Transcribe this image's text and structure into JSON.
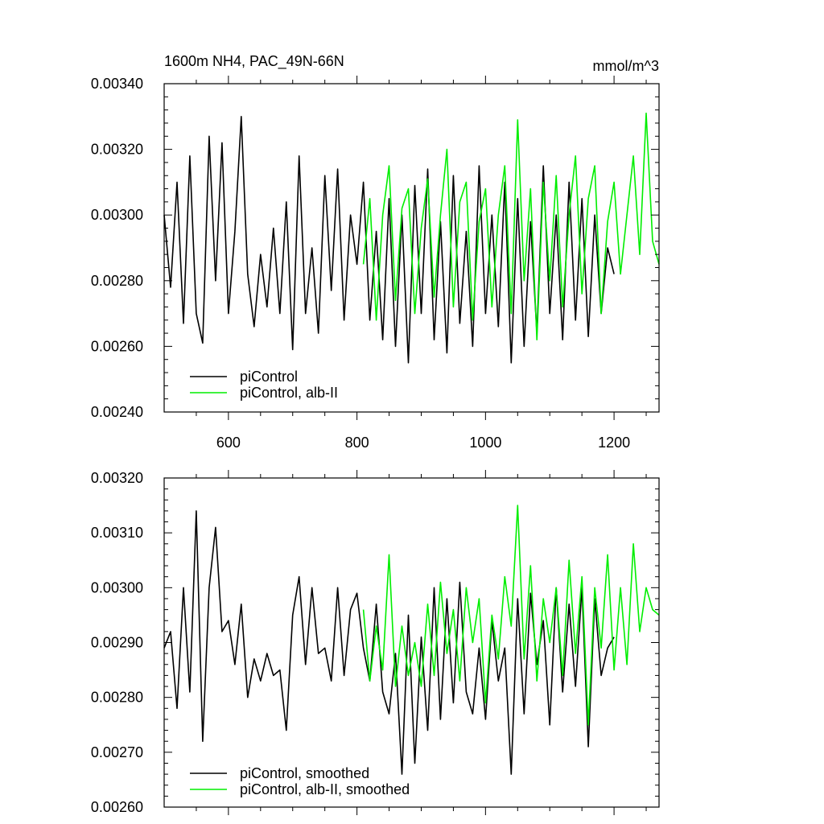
{
  "chart_data": [
    {
      "type": "line",
      "title": "1600m NH4, PAC_49N-66N",
      "units": "mmol/m^3",
      "xlim": [
        500,
        1270
      ],
      "ylim": [
        0.0024,
        0.0034
      ],
      "xticks": [
        600,
        800,
        1000,
        1200
      ],
      "xtick_labels": [
        "600",
        "800",
        "1000",
        "1200"
      ],
      "yticks": [
        0.0024,
        0.0026,
        0.0028,
        0.003,
        0.0032,
        0.0034
      ],
      "ytick_labels": [
        "0.00240",
        "0.00260",
        "0.00280",
        "0.00300",
        "0.00320",
        "0.00340"
      ],
      "legend": "bottom-left",
      "series": [
        {
          "name": "piControl",
          "color": "#000000",
          "x": [
            500,
            510,
            520,
            530,
            540,
            550,
            560,
            570,
            580,
            590,
            600,
            610,
            620,
            630,
            640,
            650,
            660,
            670,
            680,
            690,
            700,
            710,
            720,
            730,
            740,
            750,
            760,
            770,
            780,
            790,
            800,
            810,
            820,
            830,
            840,
            850,
            860,
            870,
            880,
            890,
            900,
            910,
            920,
            930,
            940,
            950,
            960,
            970,
            980,
            990,
            1000,
            1010,
            1020,
            1030,
            1040,
            1050,
            1060,
            1070,
            1080,
            1090,
            1100,
            1110,
            1120,
            1130,
            1140,
            1150,
            1160,
            1170,
            1180,
            1190,
            1200
          ],
          "values": [
            0.003,
            0.00278,
            0.0031,
            0.00267,
            0.00318,
            0.0027,
            0.00261,
            0.00324,
            0.0028,
            0.00322,
            0.0027,
            0.00295,
            0.0033,
            0.00282,
            0.00266,
            0.00288,
            0.00272,
            0.00296,
            0.0027,
            0.00304,
            0.00259,
            0.00318,
            0.0027,
            0.0029,
            0.00264,
            0.00312,
            0.00277,
            0.00314,
            0.00268,
            0.003,
            0.00285,
            0.0031,
            0.00268,
            0.00295,
            0.00262,
            0.00305,
            0.0026,
            0.003,
            0.00255,
            0.00309,
            0.0027,
            0.00314,
            0.00262,
            0.00298,
            0.00258,
            0.00312,
            0.00267,
            0.00295,
            0.0026,
            0.00315,
            0.0027,
            0.003,
            0.00266,
            0.0031,
            0.00255,
            0.00305,
            0.0026,
            0.00298,
            0.00264,
            0.00315,
            0.0027,
            0.003,
            0.00262,
            0.0031,
            0.00268,
            0.00305,
            0.00263,
            0.003,
            0.0027,
            0.0029,
            0.00282
          ]
        },
        {
          "name": "piControl, alb-II",
          "color": "#00ee00",
          "x": [
            810,
            820,
            830,
            840,
            850,
            860,
            870,
            880,
            890,
            900,
            910,
            920,
            930,
            940,
            950,
            960,
            970,
            980,
            990,
            1000,
            1010,
            1020,
            1030,
            1040,
            1050,
            1060,
            1070,
            1080,
            1090,
            1100,
            1110,
            1120,
            1130,
            1140,
            1150,
            1160,
            1170,
            1180,
            1190,
            1200,
            1210,
            1220,
            1230,
            1240,
            1250,
            1260,
            1270
          ],
          "values": [
            0.00285,
            0.00305,
            0.00268,
            0.003,
            0.00315,
            0.00274,
            0.00302,
            0.00308,
            0.0027,
            0.00296,
            0.00311,
            0.00275,
            0.003,
            0.0032,
            0.00272,
            0.00304,
            0.0031,
            0.00268,
            0.00298,
            0.00308,
            0.00272,
            0.003,
            0.00315,
            0.0027,
            0.00329,
            0.0028,
            0.00308,
            0.00262,
            0.0031,
            0.0028,
            0.00312,
            0.00272,
            0.003,
            0.00318,
            0.00276,
            0.00305,
            0.00315,
            0.0027,
            0.00298,
            0.0031,
            0.00282,
            0.003,
            0.00318,
            0.00288,
            0.00331,
            0.00292,
            0.00285
          ]
        }
      ]
    },
    {
      "type": "line",
      "xlim": [
        500,
        1270
      ],
      "ylim": [
        0.0026,
        0.0032
      ],
      "xticks": [
        600,
        800,
        1000,
        1200
      ],
      "yticks": [
        0.0026,
        0.0027,
        0.0028,
        0.0029,
        0.003,
        0.0031,
        0.0032
      ],
      "ytick_labels": [
        "0.00260",
        "0.00270",
        "0.00280",
        "0.00290",
        "0.00300",
        "0.00310",
        "0.00320"
      ],
      "legend": "bottom-left",
      "series": [
        {
          "name": "piControl, smoothed",
          "color": "#000000",
          "x": [
            500,
            510,
            520,
            530,
            540,
            550,
            560,
            570,
            580,
            590,
            600,
            610,
            620,
            630,
            640,
            650,
            660,
            670,
            680,
            690,
            700,
            710,
            720,
            730,
            740,
            750,
            760,
            770,
            780,
            790,
            800,
            810,
            820,
            830,
            840,
            850,
            860,
            870,
            880,
            890,
            900,
            910,
            920,
            930,
            940,
            950,
            960,
            970,
            980,
            990,
            1000,
            1010,
            1020,
            1030,
            1040,
            1050,
            1060,
            1070,
            1080,
            1090,
            1100,
            1110,
            1120,
            1130,
            1140,
            1150,
            1160,
            1170,
            1180,
            1190,
            1200
          ],
          "values": [
            0.00289,
            0.00292,
            0.00278,
            0.003,
            0.00281,
            0.00314,
            0.00272,
            0.003,
            0.00311,
            0.00292,
            0.00294,
            0.00286,
            0.00297,
            0.0028,
            0.00287,
            0.00283,
            0.00288,
            0.00284,
            0.00285,
            0.00274,
            0.00295,
            0.00302,
            0.00286,
            0.003,
            0.00288,
            0.00289,
            0.00283,
            0.003,
            0.00284,
            0.00296,
            0.00299,
            0.00289,
            0.00283,
            0.00297,
            0.00281,
            0.00277,
            0.00288,
            0.00266,
            0.00295,
            0.00268,
            0.00291,
            0.00274,
            0.003,
            0.00276,
            0.00298,
            0.00279,
            0.00301,
            0.00281,
            0.00277,
            0.00289,
            0.00276,
            0.00294,
            0.00283,
            0.00289,
            0.00266,
            0.00298,
            0.00277,
            0.00299,
            0.00286,
            0.00294,
            0.00275,
            0.003,
            0.00281,
            0.00297,
            0.00282,
            0.003,
            0.00271,
            0.00298,
            0.00284,
            0.00289,
            0.00291
          ]
        },
        {
          "name": "piControl, alb-II, smoothed",
          "color": "#00ee00",
          "x": [
            810,
            820,
            830,
            840,
            850,
            860,
            870,
            880,
            890,
            900,
            910,
            920,
            930,
            940,
            950,
            960,
            970,
            980,
            990,
            1000,
            1010,
            1020,
            1030,
            1040,
            1050,
            1060,
            1070,
            1080,
            1090,
            1100,
            1110,
            1120,
            1130,
            1140,
            1150,
            1160,
            1170,
            1180,
            1190,
            1200,
            1210,
            1220,
            1230,
            1240,
            1250,
            1260,
            1270
          ],
          "values": [
            0.00296,
            0.00283,
            0.00293,
            0.00285,
            0.00306,
            0.00282,
            0.00293,
            0.00284,
            0.0029,
            0.00282,
            0.00297,
            0.00284,
            0.00301,
            0.00288,
            0.00296,
            0.00283,
            0.003,
            0.0029,
            0.00298,
            0.00279,
            0.00295,
            0.00287,
            0.00302,
            0.00293,
            0.00315,
            0.00287,
            0.00304,
            0.00283,
            0.00298,
            0.0029,
            0.003,
            0.00284,
            0.00305,
            0.00288,
            0.00302,
            0.00275,
            0.003,
            0.00289,
            0.00306,
            0.00285,
            0.003,
            0.00286,
            0.00308,
            0.00292,
            0.003,
            0.00296,
            0.00295
          ]
        }
      ]
    }
  ]
}
